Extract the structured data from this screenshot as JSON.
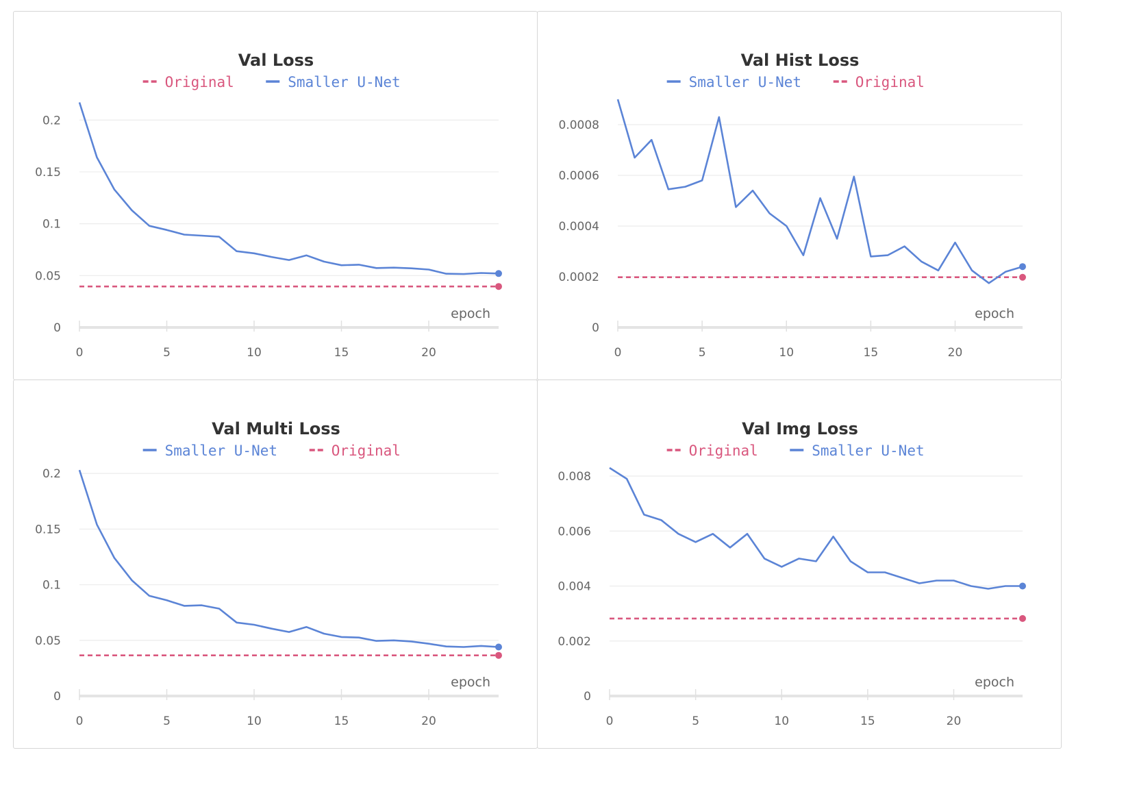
{
  "colors": {
    "original": "#d9577e",
    "smaller": "#5b84d6",
    "title": "#333333",
    "axis": "#666666"
  },
  "chart_data": [
    {
      "type": "line",
      "title": "Val Loss",
      "xlabel": "epoch",
      "ylabel": "",
      "xlim": [
        0,
        24
      ],
      "ylim": [
        0,
        0.22
      ],
      "xticks": [
        0,
        5,
        10,
        15,
        20
      ],
      "yticks": [
        0,
        0.05,
        0.1,
        0.15,
        0.2
      ],
      "ytick_labels": [
        "0",
        "0.05",
        "0.1",
        "0.15",
        "0.2"
      ],
      "legend_order": [
        "Original",
        "Smaller U-Net"
      ],
      "series": [
        {
          "name": "Original",
          "style": "dashed",
          "x": [
            0,
            24
          ],
          "values": [
            0.0395,
            0.0395
          ]
        },
        {
          "name": "Smaller U-Net",
          "style": "solid",
          "x": [
            0,
            1,
            2,
            3,
            4,
            5,
            6,
            7,
            8,
            9,
            10,
            11,
            12,
            13,
            14,
            15,
            16,
            17,
            18,
            19,
            20,
            21,
            22,
            23,
            24
          ],
          "values": [
            0.217,
            0.164,
            0.133,
            0.113,
            0.098,
            0.094,
            0.0895,
            0.0885,
            0.0875,
            0.0735,
            0.0715,
            0.068,
            0.065,
            0.0695,
            0.0635,
            0.06,
            0.0605,
            0.0573,
            0.0577,
            0.057,
            0.0558,
            0.0518,
            0.0515,
            0.0525,
            0.052
          ]
        }
      ]
    },
    {
      "type": "line",
      "title": "Val Hist Loss",
      "xlabel": "epoch",
      "ylabel": "",
      "xlim": [
        0,
        24
      ],
      "ylim": [
        0,
        0.0009
      ],
      "xticks": [
        0,
        5,
        10,
        15,
        20
      ],
      "yticks": [
        0,
        0.0002,
        0.0004,
        0.0006,
        0.0008
      ],
      "ytick_labels": [
        "0",
        "0.0002",
        "0.0004",
        "0.0006",
        "0.0008"
      ],
      "legend_order": [
        "Smaller U-Net",
        "Original"
      ],
      "series": [
        {
          "name": "Original",
          "style": "dashed",
          "x": [
            0,
            24
          ],
          "values": [
            0.000198,
            0.000198
          ]
        },
        {
          "name": "Smaller U-Net",
          "style": "solid",
          "x": [
            0,
            1,
            2,
            3,
            4,
            5,
            6,
            7,
            8,
            9,
            10,
            11,
            12,
            13,
            14,
            15,
            16,
            17,
            18,
            19,
            20,
            21,
            22,
            23,
            24
          ],
          "values": [
            0.0009,
            0.00067,
            0.00074,
            0.000545,
            0.000555,
            0.00058,
            0.00083,
            0.000475,
            0.00054,
            0.00045,
            0.0004,
            0.000285,
            0.00051,
            0.00035,
            0.000595,
            0.00028,
            0.000285,
            0.00032,
            0.00026,
            0.000225,
            0.000335,
            0.000225,
            0.000175,
            0.00022,
            0.00024
          ]
        }
      ]
    },
    {
      "type": "line",
      "title": "Val Multi Loss",
      "xlabel": "epoch",
      "ylabel": "",
      "xlim": [
        0,
        24
      ],
      "ylim": [
        0,
        0.205
      ],
      "xticks": [
        0,
        5,
        10,
        15,
        20
      ],
      "yticks": [
        0,
        0.05,
        0.1,
        0.15,
        0.2
      ],
      "ytick_labels": [
        "0",
        "0.05",
        "0.1",
        "0.15",
        "0.2"
      ],
      "legend_order": [
        "Smaller U-Net",
        "Original"
      ],
      "series": [
        {
          "name": "Original",
          "style": "dashed",
          "x": [
            0,
            24
          ],
          "values": [
            0.0365,
            0.0365
          ]
        },
        {
          "name": "Smaller U-Net",
          "style": "solid",
          "x": [
            0,
            1,
            2,
            3,
            4,
            5,
            6,
            7,
            8,
            9,
            10,
            11,
            12,
            13,
            14,
            15,
            16,
            17,
            18,
            19,
            20,
            21,
            22,
            23,
            24
          ],
          "values": [
            0.203,
            0.154,
            0.124,
            0.104,
            0.09,
            0.086,
            0.081,
            0.0815,
            0.0785,
            0.066,
            0.064,
            0.0605,
            0.0575,
            0.062,
            0.056,
            0.053,
            0.0525,
            0.0495,
            0.05,
            0.049,
            0.047,
            0.0445,
            0.044,
            0.045,
            0.044
          ]
        }
      ]
    },
    {
      "type": "line",
      "title": "Val Img Loss",
      "xlabel": "epoch",
      "ylabel": "",
      "xlim": [
        0,
        24
      ],
      "ylim": [
        0,
        0.0083
      ],
      "xticks": [
        0,
        5,
        10,
        15,
        20
      ],
      "yticks": [
        0,
        0.002,
        0.004,
        0.006,
        0.008
      ],
      "ytick_labels": [
        "0",
        "0.002",
        "0.004",
        "0.006",
        "0.008"
      ],
      "legend_order": [
        "Original",
        "Smaller U-Net"
      ],
      "series": [
        {
          "name": "Original",
          "style": "dashed",
          "x": [
            0,
            24
          ],
          "values": [
            0.00282,
            0.00282
          ]
        },
        {
          "name": "Smaller U-Net",
          "style": "solid",
          "x": [
            0,
            1,
            2,
            3,
            4,
            5,
            6,
            7,
            8,
            9,
            10,
            11,
            12,
            13,
            14,
            15,
            16,
            17,
            18,
            19,
            20,
            21,
            22,
            23,
            24
          ],
          "values": [
            0.0083,
            0.0079,
            0.0066,
            0.0064,
            0.0059,
            0.0056,
            0.0059,
            0.0054,
            0.0059,
            0.005,
            0.0047,
            0.005,
            0.0049,
            0.0058,
            0.0049,
            0.0045,
            0.0045,
            0.0043,
            0.0041,
            0.0042,
            0.0042,
            0.004,
            0.0039,
            0.004,
            0.004
          ]
        }
      ]
    }
  ]
}
